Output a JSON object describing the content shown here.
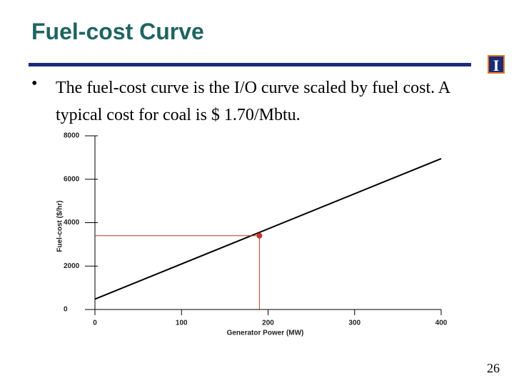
{
  "title": "Fuel-cost Curve",
  "bullet": "The fuel-cost curve is the I/O curve scaled by fuel cost.  A typical cost for coal is $ 1.70/Mbtu.",
  "page_number": "26",
  "chart_data": {
    "type": "line",
    "x": [
      0,
      400
    ],
    "series": [
      {
        "color": "#000000",
        "values": [
          480,
          6950
        ]
      },
      {
        "color": "#c0392b",
        "x": [
          190
        ],
        "values": [
          3400
        ],
        "marker": true,
        "guides": true
      }
    ],
    "xlim": [
      0,
      400
    ],
    "xticks": [
      0,
      100,
      200,
      300,
      400
    ],
    "ylim": [
      0,
      8000
    ],
    "yticks": [
      0,
      2000,
      4000,
      6000,
      8000
    ],
    "x_label": "Generator Power (MW)",
    "y_label": "Fuel-cost ($/hr)"
  }
}
